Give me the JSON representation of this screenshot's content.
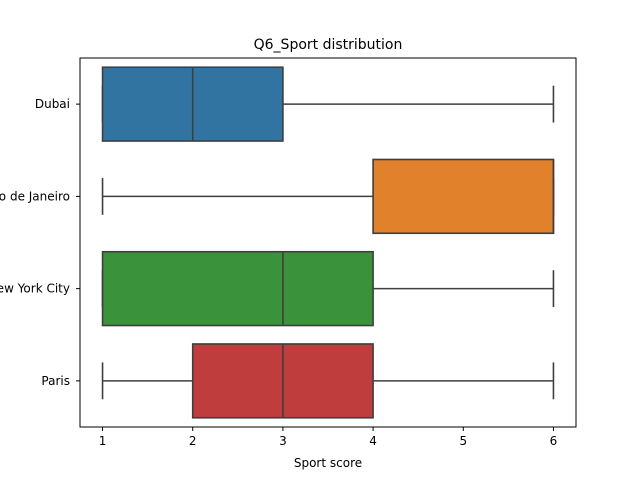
{
  "chart_data": {
    "type": "boxplot",
    "orientation": "horizontal",
    "title": "Q6_Sport distribution",
    "xlabel": "Sport score",
    "ylabel": "",
    "xlim": [
      0.75,
      6.25
    ],
    "xticks": [
      1,
      2,
      3,
      4,
      5,
      6
    ],
    "grid": false,
    "categories": [
      "Dubai",
      "Rio de Janeiro",
      "New York City",
      "Paris"
    ],
    "boxes": [
      {
        "category": "Dubai",
        "min": 1,
        "q1": 1,
        "median": 2,
        "q3": 3,
        "max": 6,
        "color": "#3274a1"
      },
      {
        "category": "Rio de Janeiro",
        "min": 1,
        "q1": 4,
        "median": 6,
        "q3": 6,
        "max": 6,
        "color": "#e1812c"
      },
      {
        "category": "New York City",
        "min": 1,
        "q1": 1,
        "median": 3,
        "q3": 4,
        "max": 6,
        "color": "#3a923a"
      },
      {
        "category": "Paris",
        "min": 1,
        "q1": 2,
        "median": 3,
        "q3": 4,
        "max": 6,
        "color": "#c03d3e"
      }
    ]
  }
}
